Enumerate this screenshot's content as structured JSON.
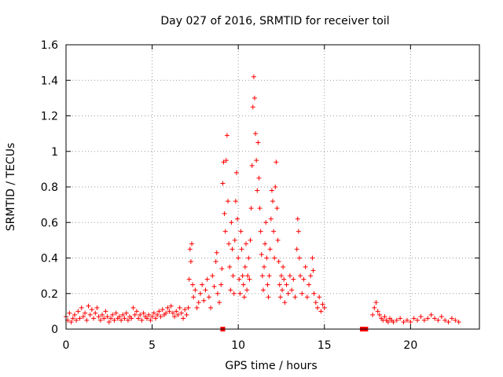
{
  "chart_data": {
    "type": "scatter",
    "title": "Day 027 of 2016, SRMTID for receiver toil",
    "xlabel": "GPS time / hours",
    "ylabel": "SRMTID / TECUs",
    "xlim": [
      0,
      24
    ],
    "ylim": [
      0,
      1.6
    ],
    "grid": true,
    "x_ticks": [
      0,
      5,
      10,
      15,
      20
    ],
    "x_tick_labels": [
      "0",
      "5",
      "10",
      "15",
      "20"
    ],
    "y_ticks": [
      0,
      0.2,
      0.4,
      0.6,
      0.8,
      1.0,
      1.2,
      1.4,
      1.6
    ],
    "y_tick_labels": [
      "0",
      "0.2",
      "0.4",
      "0.6",
      "0.8",
      "1",
      "1.2",
      "1.4",
      "1.6"
    ],
    "color": "#ff0000",
    "series": [
      {
        "name": "SRMTID",
        "marker": "plus",
        "points": [
          [
            0.0,
            0.07
          ],
          [
            0.1,
            0.05
          ],
          [
            0.2,
            0.09
          ],
          [
            0.3,
            0.04
          ],
          [
            0.4,
            0.06
          ],
          [
            0.5,
            0.08
          ],
          [
            0.6,
            0.05
          ],
          [
            0.7,
            0.1
          ],
          [
            0.8,
            0.06
          ],
          [
            0.9,
            0.12
          ],
          [
            1.0,
            0.07
          ],
          [
            1.1,
            0.09
          ],
          [
            1.2,
            0.05
          ],
          [
            1.3,
            0.13
          ],
          [
            1.4,
            0.08
          ],
          [
            1.5,
            0.11
          ],
          [
            1.6,
            0.06
          ],
          [
            1.7,
            0.09
          ],
          [
            1.8,
            0.12
          ],
          [
            1.9,
            0.07
          ],
          [
            2.0,
            0.05
          ],
          [
            2.1,
            0.08
          ],
          [
            2.2,
            0.06
          ],
          [
            2.3,
            0.1
          ],
          [
            2.4,
            0.07
          ],
          [
            2.5,
            0.04
          ],
          [
            2.6,
            0.06
          ],
          [
            2.7,
            0.08
          ],
          [
            2.8,
            0.05
          ],
          [
            2.9,
            0.09
          ],
          [
            3.0,
            0.06
          ],
          [
            3.1,
            0.07
          ],
          [
            3.2,
            0.05
          ],
          [
            3.3,
            0.08
          ],
          [
            3.4,
            0.06
          ],
          [
            3.5,
            0.09
          ],
          [
            3.6,
            0.05
          ],
          [
            3.7,
            0.07
          ],
          [
            3.8,
            0.06
          ],
          [
            3.9,
            0.12
          ],
          [
            4.0,
            0.08
          ],
          [
            4.1,
            0.1
          ],
          [
            4.2,
            0.06
          ],
          [
            4.3,
            0.08
          ],
          [
            4.4,
            0.05
          ],
          [
            4.5,
            0.09
          ],
          [
            4.6,
            0.07
          ],
          [
            4.7,
            0.06
          ],
          [
            4.8,
            0.08
          ],
          [
            4.9,
            0.05
          ],
          [
            5.0,
            0.07
          ],
          [
            5.1,
            0.09
          ],
          [
            5.2,
            0.06
          ],
          [
            5.3,
            0.08
          ],
          [
            5.4,
            0.1
          ],
          [
            5.5,
            0.07
          ],
          [
            5.6,
            0.11
          ],
          [
            5.7,
            0.08
          ],
          [
            5.8,
            0.09
          ],
          [
            5.9,
            0.12
          ],
          [
            6.0,
            0.1
          ],
          [
            6.1,
            0.13
          ],
          [
            6.2,
            0.09
          ],
          [
            6.3,
            0.07
          ],
          [
            6.4,
            0.1
          ],
          [
            6.5,
            0.08
          ],
          [
            6.6,
            0.12
          ],
          [
            6.7,
            0.09
          ],
          [
            6.8,
            0.06
          ],
          [
            6.9,
            0.11
          ],
          [
            7.0,
            0.08
          ],
          [
            7.1,
            0.12
          ],
          [
            7.15,
            0.28
          ],
          [
            7.2,
            0.45
          ],
          [
            7.25,
            0.38
          ],
          [
            7.3,
            0.48
          ],
          [
            7.35,
            0.25
          ],
          [
            7.4,
            0.18
          ],
          [
            7.5,
            0.22
          ],
          [
            7.6,
            0.12
          ],
          [
            7.7,
            0.15
          ],
          [
            7.8,
            0.2
          ],
          [
            7.9,
            0.25
          ],
          [
            8.0,
            0.16
          ],
          [
            8.1,
            0.22
          ],
          [
            8.2,
            0.28
          ],
          [
            8.3,
            0.18
          ],
          [
            8.4,
            0.12
          ],
          [
            8.5,
            0.3
          ],
          [
            8.6,
            0.24
          ],
          [
            8.7,
            0.38
          ],
          [
            8.75,
            0.43
          ],
          [
            8.8,
            0.2
          ],
          [
            8.9,
            0.15
          ],
          [
            9.0,
            0.25
          ],
          [
            9.05,
            0.34
          ],
          [
            9.1,
            0.82
          ],
          [
            9.15,
            0.94
          ],
          [
            9.2,
            0.65
          ],
          [
            9.25,
            0.55
          ],
          [
            9.3,
            0.95
          ],
          [
            9.35,
            1.09
          ],
          [
            9.4,
            0.72
          ],
          [
            9.45,
            0.48
          ],
          [
            9.5,
            0.35
          ],
          [
            9.55,
            0.22
          ],
          [
            9.6,
            0.6
          ],
          [
            9.65,
            0.45
          ],
          [
            9.7,
            0.3
          ],
          [
            9.75,
            0.2
          ],
          [
            9.8,
            0.5
          ],
          [
            9.85,
            0.72
          ],
          [
            9.9,
            0.88
          ],
          [
            9.95,
            0.62
          ],
          [
            10.0,
            0.4
          ],
          [
            10.05,
            0.28
          ],
          [
            10.1,
            0.2
          ],
          [
            10.15,
            0.55
          ],
          [
            10.2,
            0.45
          ],
          [
            10.25,
            0.3
          ],
          [
            10.3,
            0.25
          ],
          [
            10.35,
            0.18
          ],
          [
            10.4,
            0.35
          ],
          [
            10.45,
            0.48
          ],
          [
            10.5,
            0.22
          ],
          [
            10.55,
            0.3
          ],
          [
            10.6,
            0.4
          ],
          [
            10.65,
            0.28
          ],
          [
            10.7,
            0.5
          ],
          [
            10.75,
            0.68
          ],
          [
            10.8,
            0.92
          ],
          [
            10.85,
            1.25
          ],
          [
            10.9,
            1.42
          ],
          [
            10.95,
            1.3
          ],
          [
            11.0,
            1.1
          ],
          [
            11.05,
            0.95
          ],
          [
            11.1,
            0.78
          ],
          [
            11.15,
            1.05
          ],
          [
            11.2,
            0.85
          ],
          [
            11.25,
            0.68
          ],
          [
            11.3,
            0.55
          ],
          [
            11.35,
            0.42
          ],
          [
            11.4,
            0.3
          ],
          [
            11.45,
            0.22
          ],
          [
            11.5,
            0.35
          ],
          [
            11.55,
            0.48
          ],
          [
            11.6,
            0.6
          ],
          [
            11.65,
            0.4
          ],
          [
            11.7,
            0.25
          ],
          [
            11.75,
            0.18
          ],
          [
            11.8,
            0.3
          ],
          [
            11.85,
            0.45
          ],
          [
            11.9,
            0.62
          ],
          [
            11.95,
            0.78
          ],
          [
            12.0,
            0.72
          ],
          [
            12.05,
            0.55
          ],
          [
            12.1,
            0.4
          ],
          [
            12.15,
            0.8
          ],
          [
            12.2,
            0.94
          ],
          [
            12.25,
            0.68
          ],
          [
            12.3,
            0.5
          ],
          [
            12.35,
            0.38
          ],
          [
            12.4,
            0.25
          ],
          [
            12.45,
            0.18
          ],
          [
            12.5,
            0.3
          ],
          [
            12.55,
            0.22
          ],
          [
            12.6,
            0.35
          ],
          [
            12.65,
            0.28
          ],
          [
            12.7,
            0.15
          ],
          [
            12.8,
            0.25
          ],
          [
            12.9,
            0.2
          ],
          [
            13.0,
            0.3
          ],
          [
            13.1,
            0.22
          ],
          [
            13.2,
            0.28
          ],
          [
            13.3,
            0.18
          ],
          [
            13.4,
            0.45
          ],
          [
            13.45,
            0.62
          ],
          [
            13.5,
            0.55
          ],
          [
            13.55,
            0.4
          ],
          [
            13.6,
            0.3
          ],
          [
            13.7,
            0.2
          ],
          [
            13.8,
            0.28
          ],
          [
            13.9,
            0.35
          ],
          [
            14.0,
            0.18
          ],
          [
            14.1,
            0.25
          ],
          [
            14.2,
            0.3
          ],
          [
            14.3,
            0.4
          ],
          [
            14.35,
            0.33
          ],
          [
            14.4,
            0.2
          ],
          [
            14.5,
            0.15
          ],
          [
            14.6,
            0.12
          ],
          [
            14.7,
            0.18
          ],
          [
            14.8,
            0.1
          ],
          [
            14.9,
            0.14
          ],
          [
            15.0,
            0.12
          ],
          [
            17.8,
            0.08
          ],
          [
            17.9,
            0.12
          ],
          [
            18.0,
            0.15
          ],
          [
            18.1,
            0.1
          ],
          [
            18.2,
            0.08
          ],
          [
            18.3,
            0.06
          ],
          [
            18.4,
            0.05
          ],
          [
            18.5,
            0.07
          ],
          [
            18.6,
            0.05
          ],
          [
            18.7,
            0.04
          ],
          [
            18.8,
            0.06
          ],
          [
            18.9,
            0.05
          ],
          [
            19.0,
            0.04
          ],
          [
            19.2,
            0.05
          ],
          [
            19.4,
            0.06
          ],
          [
            19.6,
            0.04
          ],
          [
            19.8,
            0.05
          ],
          [
            20.0,
            0.04
          ],
          [
            20.2,
            0.06
          ],
          [
            20.4,
            0.05
          ],
          [
            20.6,
            0.07
          ],
          [
            20.8,
            0.05
          ],
          [
            21.0,
            0.06
          ],
          [
            21.2,
            0.08
          ],
          [
            21.4,
            0.06
          ],
          [
            21.6,
            0.05
          ],
          [
            21.8,
            0.07
          ],
          [
            22.0,
            0.05
          ],
          [
            22.2,
            0.04
          ],
          [
            22.4,
            0.06
          ],
          [
            22.6,
            0.05
          ],
          [
            22.8,
            0.04
          ]
        ]
      },
      {
        "name": "gap-markers",
        "marker": "square",
        "points": [
          [
            9.1,
            0.0
          ],
          [
            17.2,
            0.0
          ],
          [
            17.4,
            0.0
          ]
        ]
      }
    ]
  }
}
